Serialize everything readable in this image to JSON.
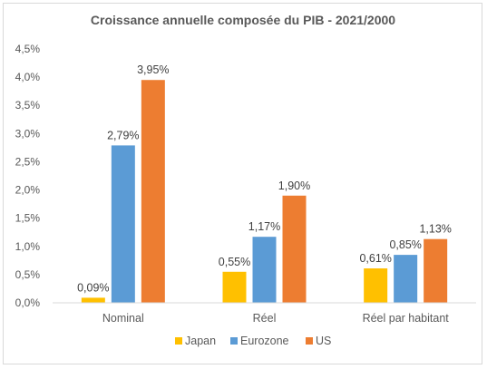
{
  "chart_data": {
    "type": "bar",
    "title": "Croissance annuelle composée du PIB - 2021/2000",
    "categories": [
      "Nominal",
      "Réel",
      "Réel par habitant"
    ],
    "series": [
      {
        "name": "Japan",
        "color": "#FFC000",
        "values": [
          0.09,
          0.55,
          0.61
        ],
        "labels": [
          "0,09%",
          "0,55%",
          "0,61%"
        ]
      },
      {
        "name": "Eurozone",
        "color": "#5B9BD5",
        "values": [
          2.79,
          1.17,
          0.85
        ],
        "labels": [
          "2,79%",
          "1,17%",
          "0,85%"
        ]
      },
      {
        "name": "US",
        "color": "#ED7D31",
        "values": [
          3.95,
          1.9,
          1.13
        ],
        "labels": [
          "3,95%",
          "1,90%",
          "1,13%"
        ]
      }
    ],
    "ylim": [
      0,
      4.5
    ],
    "yticks": [
      0,
      0.5,
      1.0,
      1.5,
      2.0,
      2.5,
      3.0,
      3.5,
      4.0,
      4.5
    ],
    "ytick_labels": [
      "0,0%",
      "0,5%",
      "1,0%",
      "1,5%",
      "2,0%",
      "2,5%",
      "3,0%",
      "3,5%",
      "4,0%",
      "4,5%"
    ],
    "grid": false,
    "legend": "bottom"
  }
}
